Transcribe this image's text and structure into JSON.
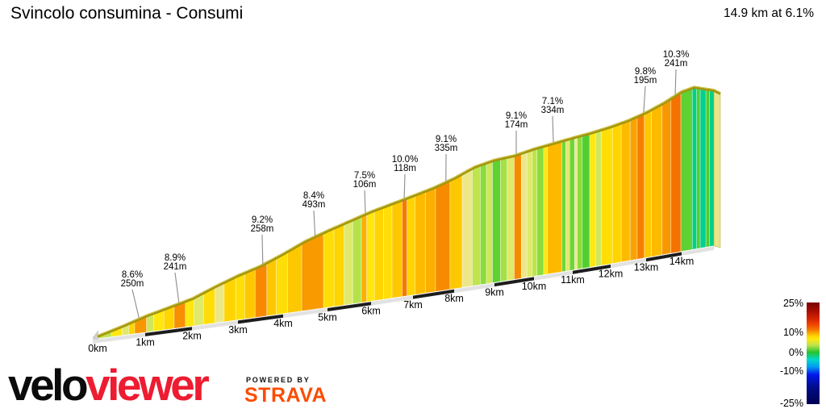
{
  "header": {
    "title": "Svincolo consumina - Consumi",
    "summary": "14.9 km at 6.1%"
  },
  "chart_data": {
    "type": "area",
    "title": "Svincolo consumina - Consumi",
    "total_distance_km": 14.9,
    "average_gradient_pct": 6.1,
    "x_unit": "km",
    "km_tick_labels": [
      "0km",
      "1km",
      "2km",
      "3km",
      "4km",
      "5km",
      "6km",
      "7km",
      "8km",
      "9km",
      "10km",
      "11km",
      "12km",
      "13km",
      "14km"
    ],
    "annotations": [
      {
        "gradient": "8.6%",
        "length": "250m",
        "at_km": 0.87
      },
      {
        "gradient": "8.9%",
        "length": "241m",
        "at_km": 1.72
      },
      {
        "gradient": "9.2%",
        "length": "258m",
        "at_km": 3.55
      },
      {
        "gradient": "8.4%",
        "length": "493m",
        "at_km": 4.72
      },
      {
        "gradient": "7.5%",
        "length": "106m",
        "at_km": 5.87
      },
      {
        "gradient": "10.0%",
        "length": "118m",
        "at_km": 6.79
      },
      {
        "gradient": "9.1%",
        "length": "335m",
        "at_km": 7.8
      },
      {
        "gradient": "9.1%",
        "length": "174m",
        "at_km": 9.55
      },
      {
        "gradient": "7.1%",
        "length": "334m",
        "at_km": 10.5
      },
      {
        "gradient": "9.8%",
        "length": "195m",
        "at_km": 12.93
      },
      {
        "gradient": "10.3%",
        "length": "241m",
        "at_km": 13.82
      }
    ],
    "segments": [
      [
        0.0,
        0.3,
        3
      ],
      [
        0.3,
        0.52,
        5
      ],
      [
        0.52,
        0.66,
        4
      ],
      [
        0.66,
        0.78,
        6
      ],
      [
        0.78,
        1.03,
        8.6
      ],
      [
        1.03,
        1.18,
        3.5
      ],
      [
        1.18,
        1.4,
        5
      ],
      [
        1.4,
        1.62,
        6
      ],
      [
        1.62,
        1.86,
        8.9
      ],
      [
        1.86,
        2.05,
        5
      ],
      [
        2.05,
        2.25,
        4
      ],
      [
        2.25,
        2.5,
        5.5
      ],
      [
        2.5,
        2.7,
        4.5
      ],
      [
        2.7,
        2.95,
        6
      ],
      [
        2.95,
        3.15,
        5.5
      ],
      [
        3.15,
        3.38,
        6.5
      ],
      [
        3.38,
        3.64,
        9.2
      ],
      [
        3.64,
        3.85,
        6.5
      ],
      [
        3.85,
        4.1,
        5.5
      ],
      [
        4.1,
        4.42,
        6.5
      ],
      [
        4.42,
        4.91,
        8.4
      ],
      [
        4.91,
        5.15,
        5.5
      ],
      [
        5.15,
        5.38,
        6
      ],
      [
        5.38,
        5.58,
        4
      ],
      [
        5.58,
        5.78,
        2.8
      ],
      [
        5.78,
        5.9,
        7.5
      ],
      [
        5.9,
        6.08,
        5
      ],
      [
        6.08,
        6.3,
        6
      ],
      [
        6.3,
        6.5,
        5.5
      ],
      [
        6.5,
        6.74,
        6.5
      ],
      [
        6.74,
        6.86,
        10
      ],
      [
        6.86,
        7.05,
        6
      ],
      [
        7.05,
        7.3,
        7
      ],
      [
        7.3,
        7.55,
        7.5
      ],
      [
        7.55,
        7.9,
        9.1
      ],
      [
        7.9,
        8.2,
        6.5
      ],
      [
        8.2,
        8.45,
        4.5
      ],
      [
        8.45,
        8.65,
        3
      ],
      [
        8.65,
        8.8,
        2
      ],
      [
        8.8,
        8.95,
        3.5
      ],
      [
        8.95,
        9.15,
        1.2
      ],
      [
        9.15,
        9.32,
        2.5
      ],
      [
        9.32,
        9.5,
        4
      ],
      [
        9.5,
        9.68,
        9.1
      ],
      [
        9.68,
        9.82,
        4.5
      ],
      [
        9.82,
        9.95,
        4
      ],
      [
        9.95,
        10.08,
        3
      ],
      [
        10.08,
        10.25,
        2
      ],
      [
        10.25,
        10.35,
        5
      ],
      [
        10.35,
        10.72,
        7.1
      ],
      [
        10.72,
        10.82,
        1.5
      ],
      [
        10.82,
        10.92,
        4
      ],
      [
        10.92,
        11.05,
        1.5
      ],
      [
        11.05,
        11.12,
        4.5
      ],
      [
        11.12,
        11.25,
        2
      ],
      [
        11.25,
        11.45,
        1
      ],
      [
        11.45,
        11.6,
        5
      ],
      [
        11.6,
        11.75,
        3.5
      ],
      [
        11.75,
        12.05,
        5.5
      ],
      [
        12.05,
        12.3,
        6
      ],
      [
        12.3,
        12.55,
        7
      ],
      [
        12.55,
        12.75,
        8
      ],
      [
        12.75,
        12.95,
        9.8
      ],
      [
        12.95,
        13.15,
        6.5
      ],
      [
        13.15,
        13.45,
        7
      ],
      [
        13.45,
        13.7,
        8.5
      ],
      [
        13.7,
        13.98,
        10.3
      ],
      [
        13.98,
        14.3,
        1.2
      ],
      [
        14.3,
        14.42,
        -1
      ],
      [
        14.42,
        14.52,
        1
      ],
      [
        14.52,
        14.68,
        -1.2
      ],
      [
        14.68,
        14.78,
        0.8
      ],
      [
        14.78,
        14.9,
        -1
      ]
    ],
    "gradient_color_stops": [
      [
        -25,
        "#000050"
      ],
      [
        -10,
        "#0018ee"
      ],
      [
        -6,
        "#00a0f0"
      ],
      [
        -3,
        "#00d8c8"
      ],
      [
        -1,
        "#00cf8a"
      ],
      [
        0,
        "#28c32e"
      ],
      [
        1,
        "#52cf30"
      ],
      [
        2,
        "#8bdc3c"
      ],
      [
        3,
        "#bfe44e"
      ],
      [
        4,
        "#dfe96a"
      ],
      [
        4.5,
        "#ece88a"
      ],
      [
        5,
        "#ffe70f"
      ],
      [
        6,
        "#ffd400"
      ],
      [
        7,
        "#fdbb00"
      ],
      [
        8,
        "#f9a300"
      ],
      [
        9,
        "#f78d00"
      ],
      [
        10,
        "#f57a00"
      ],
      [
        11,
        "#f36000"
      ],
      [
        12,
        "#f04800"
      ],
      [
        15,
        "#d62400"
      ],
      [
        20,
        "#a30d02"
      ],
      [
        25,
        "#780403"
      ]
    ],
    "legend": {
      "labels": [
        "25%",
        "10%",
        "0%",
        "-10%",
        "-25%"
      ],
      "position": "bottom-right",
      "range_pct": [
        -25,
        25
      ]
    }
  },
  "branding": {
    "velo": "velo",
    "viewer": "viewer",
    "velo_color": "#0b0b0b",
    "viewer_color": "#ed1c30",
    "powered_by": "POWERED BY",
    "strava": "STRAVA",
    "strava_color": "#fc4c02"
  }
}
